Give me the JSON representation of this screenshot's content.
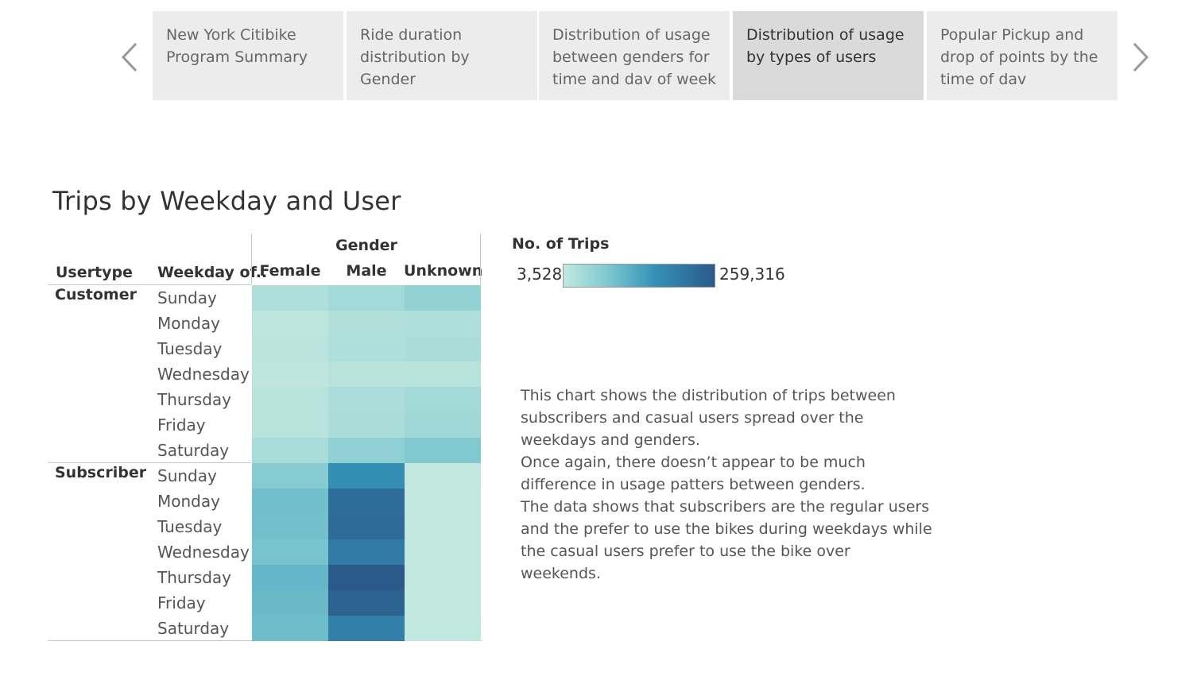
{
  "story": {
    "points": [
      {
        "label": "New York Citibike Program Summary",
        "active": false
      },
      {
        "label": "Ride duration distribution by Gender",
        "active": false
      },
      {
        "label": "Distribution of usage between genders for time and dav of week",
        "active": false
      },
      {
        "label": "Distribution of usage by types of users",
        "active": true
      },
      {
        "label": "Popular Pickup and drop of points by the time of dav",
        "active": false
      }
    ]
  },
  "title": "Trips by Weekday and User",
  "table": {
    "gender_header": "Gender",
    "usertype_header": "Usertype",
    "weekday_header": "Weekday of..",
    "columns": [
      "Female",
      "Male",
      "Unknown"
    ],
    "groups": [
      {
        "name": "Customer",
        "days": [
          "Sunday",
          "Monday",
          "Tuesday",
          "Wednesday",
          "Thursday",
          "Friday",
          "Saturday"
        ]
      },
      {
        "name": "Subscriber",
        "days": [
          "Sunday",
          "Monday",
          "Tuesday",
          "Wednesday",
          "Thursday",
          "Friday",
          "Saturday"
        ]
      }
    ]
  },
  "legend": {
    "title": "No. of Trips",
    "min_label": "3,528",
    "max_label": "259,316"
  },
  "description": [
    "This chart shows the distribution of trips between subscribers and casual users spread over the weekdays and genders.",
    "Once again, there doesn’t appear to be much difference in usage patters between genders.",
    "The data shows that subscribers are the regular users and the prefer to use the bikes during weekdays while the casual users prefer to use the bike over weekends."
  ],
  "chart_data": {
    "type": "heatmap",
    "title": "Trips by Weekday and User",
    "color_metric": "No. of Trips",
    "color_range": [
      3528,
      259316
    ],
    "rows": [
      {
        "usertype": "Customer",
        "weekday": "Sunday",
        "values": [
          25000,
          38000,
          55000
        ]
      },
      {
        "usertype": "Customer",
        "weekday": "Monday",
        "values": [
          10000,
          22000,
          25000
        ]
      },
      {
        "usertype": "Customer",
        "weekday": "Tuesday",
        "values": [
          12000,
          24000,
          30000
        ]
      },
      {
        "usertype": "Customer",
        "weekday": "Wednesday",
        "values": [
          8000,
          16000,
          15000
        ]
      },
      {
        "usertype": "Customer",
        "weekday": "Thursday",
        "values": [
          14000,
          28000,
          37000
        ]
      },
      {
        "usertype": "Customer",
        "weekday": "Friday",
        "values": [
          15000,
          30000,
          40000
        ]
      },
      {
        "usertype": "Customer",
        "weekday": "Saturday",
        "values": [
          32000,
          60000,
          75000
        ]
      },
      {
        "usertype": "Subscriber",
        "weekday": "Sunday",
        "values": [
          70000,
          165000,
          5000
        ]
      },
      {
        "usertype": "Subscriber",
        "weekday": "Monday",
        "values": [
          92000,
          225000,
          3528
        ]
      },
      {
        "usertype": "Subscriber",
        "weekday": "Tuesday",
        "values": [
          90000,
          228000,
          3600
        ]
      },
      {
        "usertype": "Subscriber",
        "weekday": "Wednesday",
        "values": [
          85000,
          200000,
          3600
        ]
      },
      {
        "usertype": "Subscriber",
        "weekday": "Thursday",
        "values": [
          105000,
          259316,
          3700
        ]
      },
      {
        "usertype": "Subscriber",
        "weekday": "Friday",
        "values": [
          100000,
          245000,
          3800
        ]
      },
      {
        "usertype": "Subscriber",
        "weekday": "Saturday",
        "values": [
          95000,
          190000,
          4200
        ]
      }
    ],
    "columns": [
      "Female",
      "Male",
      "Unknown"
    ]
  }
}
